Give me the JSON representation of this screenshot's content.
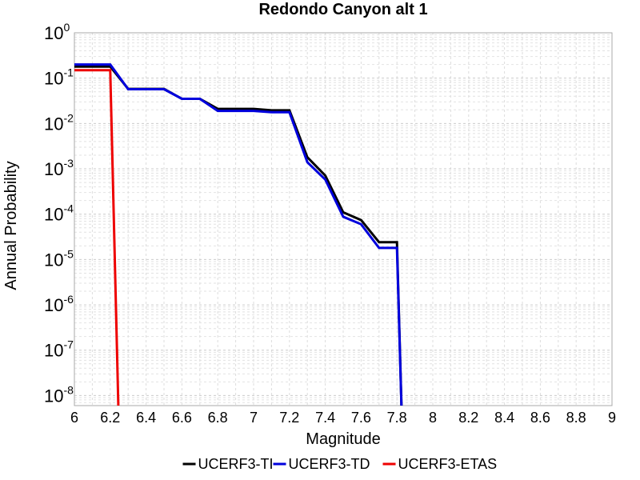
{
  "chart_data": {
    "type": "line",
    "title": "Redondo Canyon alt 1",
    "xlabel": "Magnitude",
    "ylabel": "Annual Probability",
    "xlim": [
      6,
      9
    ],
    "ylim": [
      6e-09,
      1
    ],
    "yscale": "log",
    "grid": true,
    "legend_position": "bottom",
    "xticks": [
      "6",
      "6.2",
      "6.4",
      "6.6",
      "6.8",
      "7",
      "7.2",
      "7.4",
      "7.6",
      "7.8",
      "8",
      "8.2",
      "8.4",
      "8.6",
      "8.8",
      "9"
    ],
    "yticks": [
      {
        "base": "10",
        "exp": "0",
        "value": 1
      },
      {
        "base": "10",
        "exp": "-1",
        "value": 0.1
      },
      {
        "base": "10",
        "exp": "-2",
        "value": 0.01
      },
      {
        "base": "10",
        "exp": "-3",
        "value": 0.001
      },
      {
        "base": "10",
        "exp": "-4",
        "value": 0.0001
      },
      {
        "base": "10",
        "exp": "-5",
        "value": 1e-05
      },
      {
        "base": "10",
        "exp": "-6",
        "value": 1e-06
      },
      {
        "base": "10",
        "exp": "-7",
        "value": 1e-07
      },
      {
        "base": "10",
        "exp": "-8",
        "value": 1e-08
      }
    ],
    "series": [
      {
        "name": "UCERF3-TI",
        "color": "#000000",
        "points": [
          [
            6.0,
            0.18
          ],
          [
            6.2,
            0.18
          ],
          [
            6.3,
            0.058
          ],
          [
            6.5,
            0.058
          ],
          [
            6.6,
            0.035
          ],
          [
            6.7,
            0.035
          ],
          [
            6.8,
            0.021
          ],
          [
            7.0,
            0.021
          ],
          [
            7.1,
            0.0195
          ],
          [
            7.2,
            0.0195
          ],
          [
            7.3,
            0.0018
          ],
          [
            7.4,
            0.00071
          ],
          [
            7.5,
            0.00011
          ],
          [
            7.6,
            7.4e-05
          ],
          [
            7.7,
            2.4e-05
          ],
          [
            7.8,
            2.4e-05
          ],
          [
            7.825,
            6e-09
          ]
        ]
      },
      {
        "name": "UCERF3-TD",
        "color": "#0000dd",
        "points": [
          [
            6.0,
            0.2
          ],
          [
            6.2,
            0.2
          ],
          [
            6.3,
            0.057
          ],
          [
            6.5,
            0.057
          ],
          [
            6.6,
            0.035
          ],
          [
            6.7,
            0.035
          ],
          [
            6.8,
            0.019
          ],
          [
            7.0,
            0.019
          ],
          [
            7.1,
            0.0178
          ],
          [
            7.2,
            0.0178
          ],
          [
            7.3,
            0.0014
          ],
          [
            7.4,
            0.00058
          ],
          [
            7.5,
            8.8e-05
          ],
          [
            7.6,
            6e-05
          ],
          [
            7.7,
            1.8e-05
          ],
          [
            7.8,
            1.8e-05
          ],
          [
            7.825,
            6e-09
          ]
        ]
      },
      {
        "name": "UCERF3-ETAS",
        "color": "#ee0000",
        "points": [
          [
            6.0,
            0.15
          ],
          [
            6.2,
            0.15
          ],
          [
            6.245,
            6e-09
          ]
        ]
      }
    ]
  }
}
